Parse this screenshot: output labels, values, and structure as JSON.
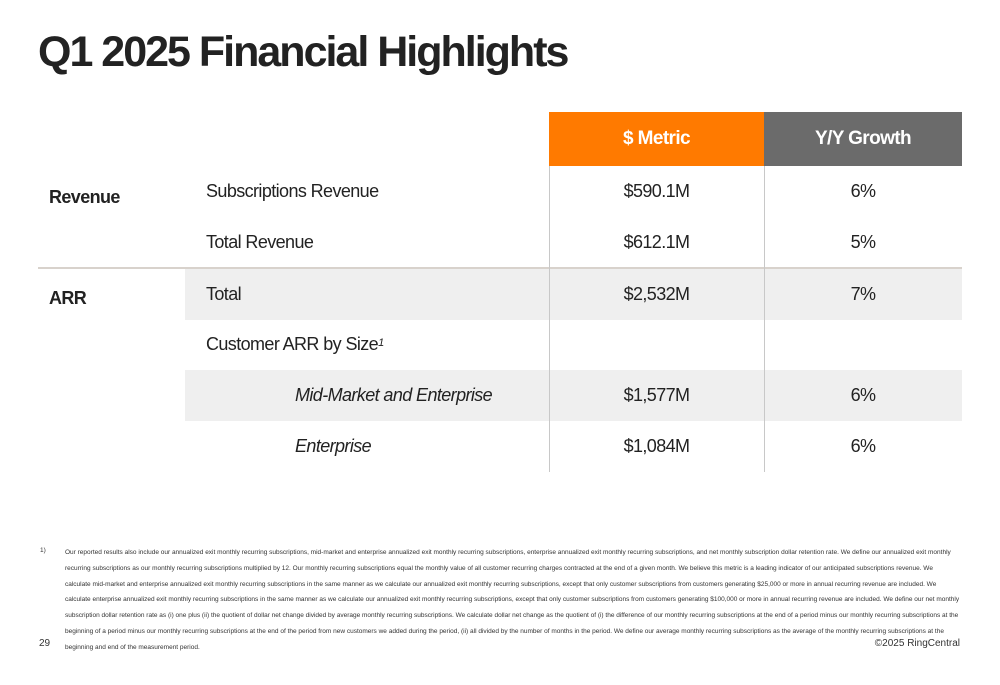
{
  "title": "Q1 2025 Financial Highlights",
  "table": {
    "headers": {
      "metric": "$ Metric",
      "growth": "Y/Y Growth"
    },
    "groups": [
      {
        "label": "Revenue",
        "rows": [
          {
            "label": "Subscriptions Revenue",
            "metric": "$590.1M",
            "growth": "6%"
          },
          {
            "label": "Total Revenue",
            "metric": "$612.1M",
            "growth": "5%"
          }
        ]
      },
      {
        "label": "ARR",
        "rows": [
          {
            "label": "Total",
            "metric": "$2,532M",
            "growth": "7%"
          },
          {
            "label": "Customer ARR by Size",
            "footnote_ref": "1",
            "metric": "",
            "growth": ""
          },
          {
            "label": "Mid-Market and Enterprise",
            "metric": "$1,577M",
            "growth": "6%"
          },
          {
            "label": "Enterprise",
            "metric": "$1,084M",
            "growth": "6%"
          }
        ]
      }
    ]
  },
  "footnote": {
    "number": "1)",
    "text": "Our reported results also include our annualized exit monthly recurring subscriptions, mid-market and enterprise annualized exit monthly recurring subscriptions, enterprise annualized exit monthly recurring subscriptions, and net monthly subscription dollar retention rate. We define our annualized exit monthly recurring subscriptions as our monthly recurring subscriptions multiplied by 12. Our monthly recurring subscriptions equal the monthly value of all customer recurring charges contracted at the end of a given month. We believe this metric is a leading indicator of our anticipated subscriptions revenue. We calculate mid-market and enterprise annualized exit monthly recurring subscriptions in the same manner as we calculate our annualized exit monthly recurring subscriptions, except that only customer subscriptions from customers generating $25,000 or more in annual recurring revenue are included. We calculate enterprise annualized exit monthly recurring subscriptions in the same manner as we calculate our annualized exit monthly recurring subscriptions, except that only customer subscriptions from customers generating $100,000 or more in annual recurring revenue are included. We define our net monthly subscription dollar retention rate as (i) one plus (ii) the quotient of dollar net change divided by average monthly recurring subscriptions. We calculate dollar net change as the quotient of (i) the difference of our monthly recurring subscriptions at the end of a period minus our monthly recurring subscriptions at the beginning of a period minus our monthly recurring subscriptions at the end of the period from new customers we added during the period, (ii) all divided by the number of months in the period. We define our average monthly recurring subscriptions as the average of the monthly recurring subscriptions at the beginning and end of the measurement period."
  },
  "footer": {
    "page_number": "29",
    "copyright": "©2025 RingCentral"
  },
  "colors": {
    "metric_header": "#ff7a00",
    "growth_header": "#6b6b6b",
    "row_shade": "#efefef"
  }
}
